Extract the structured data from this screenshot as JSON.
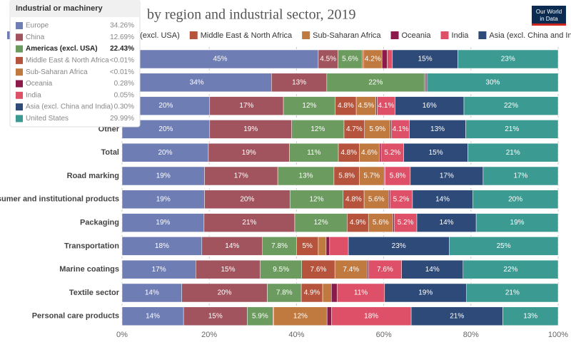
{
  "chart_data": {
    "type": "stacked-bar-horizontal",
    "title": "by region and industrial sector, 2019",
    "categories": [
      null,
      "Industrial or machinery",
      null,
      "Other",
      "Total",
      "Road marking",
      "Consumer and institutional products",
      "Packaging",
      "Transportation",
      "Marine coatings",
      "Textile sector",
      "Personal care products"
    ],
    "series": [
      {
        "name": "Europe",
        "color": "#6f7db5",
        "values": [
          45.0,
          34.26,
          20.1,
          20.1,
          19.8,
          18.9,
          18.9,
          18.8,
          18.3,
          16.9,
          13.7,
          14.1
        ],
        "value_labels": [
          "45%",
          "34%",
          "20%",
          "20%",
          "20%",
          "19%",
          "19%",
          "19%",
          "18%",
          "17%",
          "14%",
          "14%"
        ]
      },
      {
        "name": "China",
        "color": "#a2545e",
        "values": [
          4.5,
          12.69,
          16.9,
          18.8,
          18.6,
          16.8,
          19.6,
          20.8,
          13.9,
          14.8,
          19.6,
          14.6
        ],
        "value_labels": [
          "4.5%",
          "13%",
          "17%",
          "19%",
          "19%",
          "17%",
          "20%",
          "21%",
          "14%",
          "15%",
          "20%",
          "15%"
        ]
      },
      {
        "name": "Americas (excl. USA)",
        "color": "#6b9b5e",
        "values": [
          5.6,
          22.43,
          11.9,
          12.0,
          11.2,
          12.9,
          12.2,
          12.0,
          7.8,
          9.5,
          7.8,
          5.9
        ],
        "value_labels": [
          "5.6%",
          "22%",
          "12%",
          "12%",
          "11%",
          "13%",
          "12%",
          "12%",
          "7.8%",
          "9.5%",
          "7.8%",
          "5.9%"
        ]
      },
      {
        "name": "Middle East & North Africa",
        "color": "#b5533c",
        "values": [
          0.3,
          0.004,
          4.8,
          4.7,
          4.8,
          5.8,
          4.8,
          4.9,
          5.0,
          7.6,
          4.9,
          0.2
        ],
        "value_labels": [
          null,
          null,
          "4.8%",
          "4.7%",
          "4.8%",
          "5.8%",
          "4.8%",
          "4.9%",
          "5%",
          "7.6%",
          "4.9%",
          null
        ]
      },
      {
        "name": "Sub-Saharan Africa",
        "color": "#c0793f",
        "values": [
          4.2,
          0.004,
          4.5,
          5.9,
          4.6,
          5.7,
          5.6,
          5.6,
          1.8,
          7.4,
          2.0,
          12.2
        ],
        "value_labels": [
          "4.2%",
          null,
          "4.5%",
          "5.9%",
          "4.6%",
          "5.7%",
          "5.6%",
          "5.6%",
          null,
          "7.4%",
          null,
          "12%"
        ]
      },
      {
        "name": "Oceania",
        "color": "#8b1a4a",
        "values": [
          1.2,
          0.28,
          0.3,
          0.3,
          0.4,
          0.2,
          0.3,
          0.3,
          0.8,
          0.3,
          1.3,
          1.0
        ],
        "value_labels": [
          null,
          null,
          null,
          null,
          null,
          null,
          null,
          null,
          null,
          null,
          null,
          null
        ]
      },
      {
        "name": "India",
        "color": "#de5067",
        "values": [
          1.2,
          0.05,
          4.1,
          4.1,
          5.2,
          5.8,
          5.2,
          5.2,
          4.3,
          7.6,
          10.9,
          18.3
        ],
        "value_labels": [
          null,
          null,
          "4.1%",
          "4.1%",
          "5.2%",
          "5.8%",
          "5.2%",
          "5.2%",
          null,
          "7.6%",
          "11%",
          "18%"
        ]
      },
      {
        "name": "Asia (excl. China and India)",
        "color": "#2e4a78",
        "values": [
          15.0,
          0.3,
          15.8,
          12.9,
          14.7,
          16.7,
          13.8,
          13.6,
          23.1,
          14.1,
          18.8,
          21.0
        ],
        "value_labels": [
          "15%",
          null,
          "16%",
          "13%",
          "15%",
          "17%",
          "14%",
          "14%",
          "23%",
          "14%",
          "19%",
          "21%"
        ]
      },
      {
        "name": "United States",
        "color": "#3b9a91",
        "values": [
          23.0,
          29.99,
          21.6,
          21.2,
          20.7,
          17.2,
          19.6,
          18.8,
          25.0,
          21.8,
          21.0,
          12.7
        ],
        "value_labels": [
          "23%",
          "30%",
          "22%",
          "21%",
          "21%",
          "17%",
          "20%",
          "19%",
          "25%",
          "22%",
          "21%",
          "13%"
        ]
      }
    ],
    "xlim": [
      0,
      100
    ],
    "xticks": [
      {
        "value": 0,
        "label": "0%"
      },
      {
        "value": 20,
        "label": "20%"
      },
      {
        "value": 40,
        "label": "40%"
      },
      {
        "value": 60,
        "label": "60%"
      },
      {
        "value": 80,
        "label": "80%"
      },
      {
        "value": 100,
        "label": "100%"
      }
    ],
    "grid": true,
    "tooltip": {
      "category": 1,
      "highlight": 2,
      "value_labels": [
        "34.26%",
        "12.69%",
        "22.43%",
        "<0.01%",
        "<0.01%",
        "0.28%",
        "0.05%",
        "0.30%",
        "29.99%"
      ]
    }
  },
  "logo": {
    "lines": [
      "Our World",
      "in Data"
    ]
  }
}
